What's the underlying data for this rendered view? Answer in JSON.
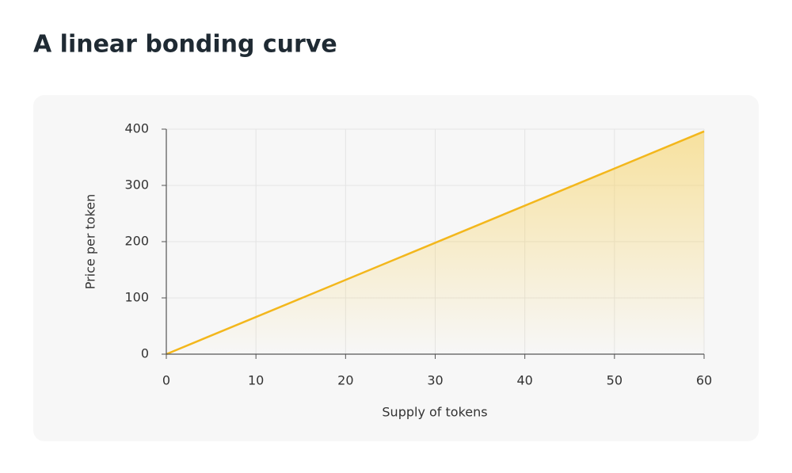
{
  "chart_data": {
    "type": "area",
    "title": "A linear bonding curve",
    "x_label": "Supply of tokens",
    "y_label": "Price per token",
    "x": [
      0,
      60
    ],
    "values": [
      0,
      396
    ],
    "color": "#f3b71c",
    "xlim": [
      0,
      60
    ],
    "xticks": [
      0,
      10,
      20,
      30,
      40,
      50,
      60
    ],
    "ylim": [
      0,
      400
    ],
    "yticks": [
      0,
      100,
      200,
      300,
      400
    ],
    "grid": true
  }
}
